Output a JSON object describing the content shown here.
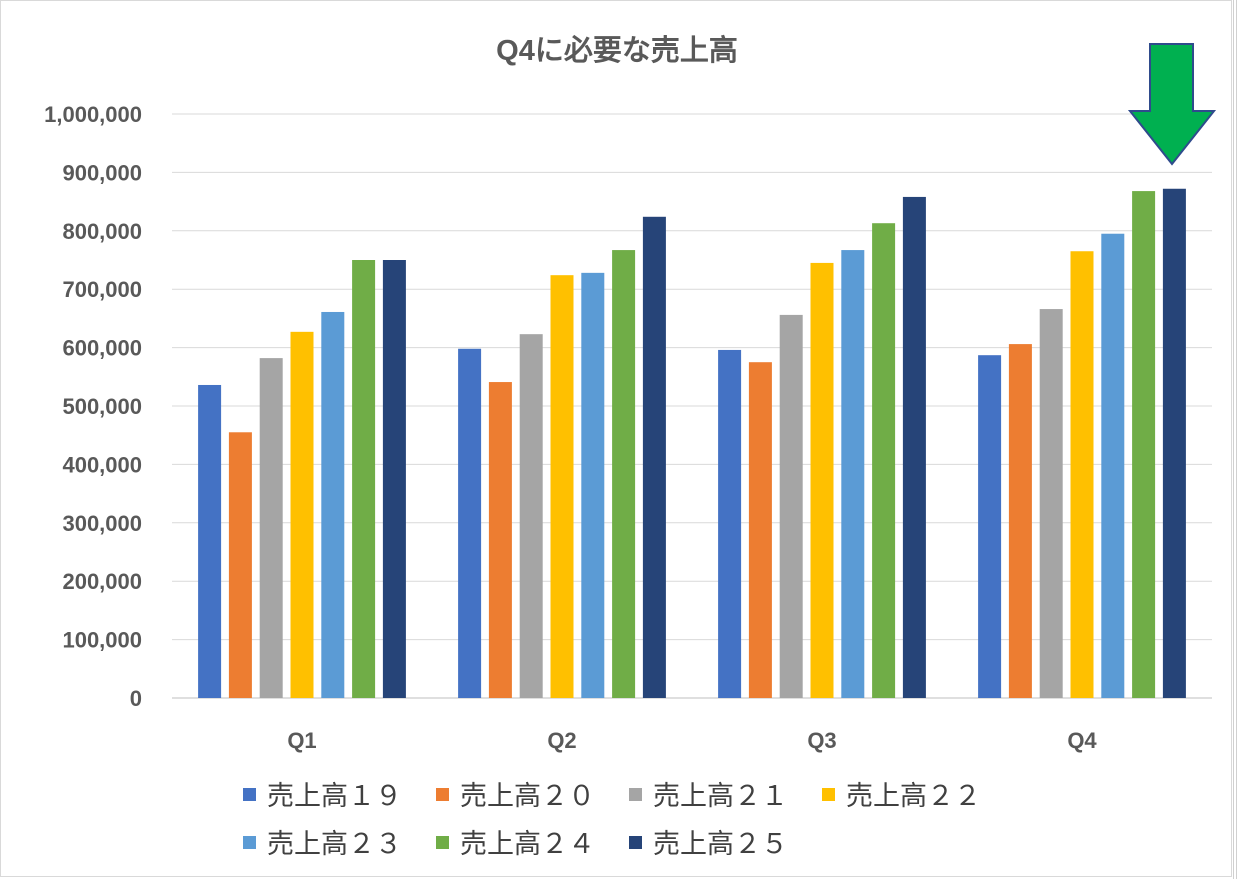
{
  "chart_data": {
    "type": "bar",
    "title": "Q4に必要な売上高",
    "xlabel": "",
    "ylabel": "",
    "ylim": [
      0,
      1000000
    ],
    "y_ticks": [
      "0",
      "100,000",
      "200,000",
      "300,000",
      "400,000",
      "500,000",
      "600,000",
      "700,000",
      "800,000",
      "900,000",
      "1,000,000"
    ],
    "grid": true,
    "legend_position": "bottom",
    "categories": [
      "Q1",
      "Q2",
      "Q3",
      "Q4"
    ],
    "series": [
      {
        "name": "売上高１９",
        "color": "#4472C4",
        "values": [
          536000,
          598000,
          596000,
          587000
        ]
      },
      {
        "name": "売上高２０",
        "color": "#ED7D31",
        "values": [
          455000,
          541000,
          575000,
          606000
        ]
      },
      {
        "name": "売上高２１",
        "color": "#A5A5A5",
        "values": [
          582000,
          623000,
          656000,
          666000
        ]
      },
      {
        "name": "売上高２２",
        "color": "#FFC000",
        "values": [
          627000,
          724000,
          745000,
          765000
        ]
      },
      {
        "name": "売上高２３",
        "color": "#5B9BD5",
        "values": [
          661000,
          728000,
          767000,
          795000
        ]
      },
      {
        "name": "売上高２４",
        "color": "#70AD47",
        "values": [
          750000,
          767000,
          813000,
          868000
        ]
      },
      {
        "name": "売上高２５",
        "color": "#264478",
        "values": [
          750000,
          824000,
          858000,
          872000
        ]
      }
    ],
    "legend_labels": [
      "売上高１９",
      "売上高２０",
      "売上高２１",
      "売上高２２",
      "売上高２３",
      "売上高２４",
      "売上高２５"
    ],
    "annotation": {
      "type": "down-arrow",
      "target": "Q4 売上高２５",
      "color": "#00B050"
    }
  }
}
